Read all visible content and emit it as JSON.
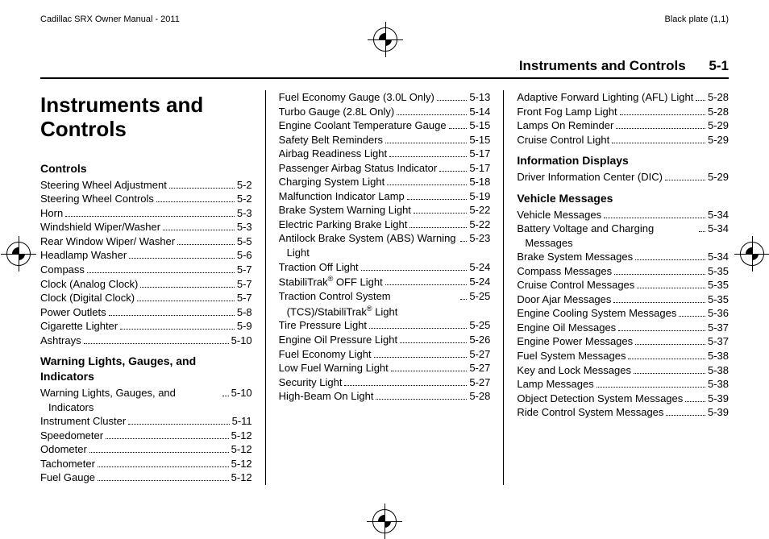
{
  "header": {
    "left_text": "Cadillac SRX Owner Manual - 2011",
    "right_text": "Black plate (1,1)"
  },
  "section_header": {
    "title": "Instruments and Controls",
    "page_number": "5-1"
  },
  "chapter_title": "Instruments and Controls",
  "columns": {
    "col1": [
      {
        "type": "head",
        "text": "Controls"
      },
      {
        "type": "item",
        "label": "Steering Wheel Adjustment",
        "page": "5-2"
      },
      {
        "type": "item",
        "label": "Steering Wheel Controls",
        "page": "5-2"
      },
      {
        "type": "item",
        "label": "Horn",
        "page": "5-3"
      },
      {
        "type": "item",
        "label": "Windshield Wiper/Washer",
        "page": "5-3"
      },
      {
        "type": "item",
        "label": "Rear Window Wiper/ Washer",
        "page": "5-5"
      },
      {
        "type": "item",
        "label": "Headlamp Washer",
        "page": "5-6"
      },
      {
        "type": "item",
        "label": "Compass",
        "page": "5-7"
      },
      {
        "type": "item",
        "label": "Clock (Analog Clock)",
        "page": "5-7"
      },
      {
        "type": "item",
        "label": "Clock (Digital Clock)",
        "page": "5-7"
      },
      {
        "type": "item",
        "label": "Power Outlets",
        "page": "5-8"
      },
      {
        "type": "item",
        "label": "Cigarette Lighter",
        "page": "5-9"
      },
      {
        "type": "item",
        "label": "Ashtrays",
        "page": "5-10"
      },
      {
        "type": "head",
        "text": "Warning Lights, Gauges, and Indicators"
      },
      {
        "type": "item",
        "label": "Warning Lights, Gauges, and Indicators",
        "page": "5-10"
      },
      {
        "type": "item",
        "label": "Instrument Cluster",
        "page": "5-11"
      },
      {
        "type": "item",
        "label": "Speedometer",
        "page": "5-12"
      },
      {
        "type": "item",
        "label": "Odometer",
        "page": "5-12"
      },
      {
        "type": "item",
        "label": "Tachometer",
        "page": "5-12"
      },
      {
        "type": "item",
        "label": "Fuel Gauge",
        "page": "5-12"
      }
    ],
    "col2": [
      {
        "type": "item",
        "label": "Fuel Economy Gauge (3.0L Only)",
        "page": "5-13"
      },
      {
        "type": "item",
        "label": "Turbo Gauge (2.8L Only)",
        "page": "5-14"
      },
      {
        "type": "item",
        "label": "Engine Coolant Temperature Gauge",
        "page": "5-15"
      },
      {
        "type": "item",
        "label": "Safety Belt Reminders",
        "page": "5-15"
      },
      {
        "type": "item",
        "label": "Airbag Readiness Light",
        "page": "5-17"
      },
      {
        "type": "item",
        "label": "Passenger Airbag Status Indicator",
        "page": "5-17"
      },
      {
        "type": "item",
        "label": "Charging System Light",
        "page": "5-18"
      },
      {
        "type": "item",
        "label": "Malfunction Indicator Lamp",
        "page": "5-19"
      },
      {
        "type": "item",
        "label": "Brake System Warning Light",
        "page": "5-22"
      },
      {
        "type": "item",
        "label": "Electric Parking Brake Light",
        "page": "5-22"
      },
      {
        "type": "item",
        "label": "Antilock Brake System (ABS) Warning Light",
        "page": "5-23"
      },
      {
        "type": "item",
        "label": "Traction Off Light",
        "page": "5-24"
      },
      {
        "type": "item",
        "label": "StabiliTrak® OFF Light",
        "page": "5-24"
      },
      {
        "type": "item",
        "label": "Traction Control System (TCS)/StabiliTrak® Light",
        "page": "5-25"
      },
      {
        "type": "item",
        "label": "Tire Pressure Light",
        "page": "5-25"
      },
      {
        "type": "item",
        "label": "Engine Oil Pressure Light",
        "page": "5-26"
      },
      {
        "type": "item",
        "label": "Fuel Economy Light",
        "page": "5-27"
      },
      {
        "type": "item",
        "label": "Low Fuel Warning Light",
        "page": "5-27"
      },
      {
        "type": "item",
        "label": "Security Light",
        "page": "5-27"
      },
      {
        "type": "item",
        "label": "High-Beam On Light",
        "page": "5-28"
      }
    ],
    "col3": [
      {
        "type": "item",
        "label": "Adaptive Forward Lighting (AFL) Light",
        "page": "5-28"
      },
      {
        "type": "item",
        "label": "Front Fog Lamp Light",
        "page": "5-28"
      },
      {
        "type": "item",
        "label": "Lamps On Reminder",
        "page": "5-29"
      },
      {
        "type": "item",
        "label": "Cruise Control Light",
        "page": "5-29"
      },
      {
        "type": "head",
        "text": "Information Displays"
      },
      {
        "type": "item",
        "label": "Driver Information Center (DIC)",
        "page": "5-29"
      },
      {
        "type": "head",
        "text": "Vehicle Messages"
      },
      {
        "type": "item",
        "label": "Vehicle Messages",
        "page": "5-34"
      },
      {
        "type": "item",
        "label": "Battery Voltage and Charging Messages",
        "page": "5-34"
      },
      {
        "type": "item",
        "label": "Brake System Messages",
        "page": "5-34"
      },
      {
        "type": "item",
        "label": "Compass Messages",
        "page": "5-35"
      },
      {
        "type": "item",
        "label": "Cruise Control Messages",
        "page": "5-35"
      },
      {
        "type": "item",
        "label": "Door Ajar Messages",
        "page": "5-35"
      },
      {
        "type": "item",
        "label": "Engine Cooling System Messages",
        "page": "5-36"
      },
      {
        "type": "item",
        "label": "Engine Oil Messages",
        "page": "5-37"
      },
      {
        "type": "item",
        "label": "Engine Power Messages",
        "page": "5-37"
      },
      {
        "type": "item",
        "label": "Fuel System Messages",
        "page": "5-38"
      },
      {
        "type": "item",
        "label": "Key and Lock Messages",
        "page": "5-38"
      },
      {
        "type": "item",
        "label": "Lamp Messages",
        "page": "5-38"
      },
      {
        "type": "item",
        "label": "Object Detection System Messages",
        "page": "5-39"
      },
      {
        "type": "item",
        "label": "Ride Control System Messages",
        "page": "5-39"
      }
    ]
  }
}
